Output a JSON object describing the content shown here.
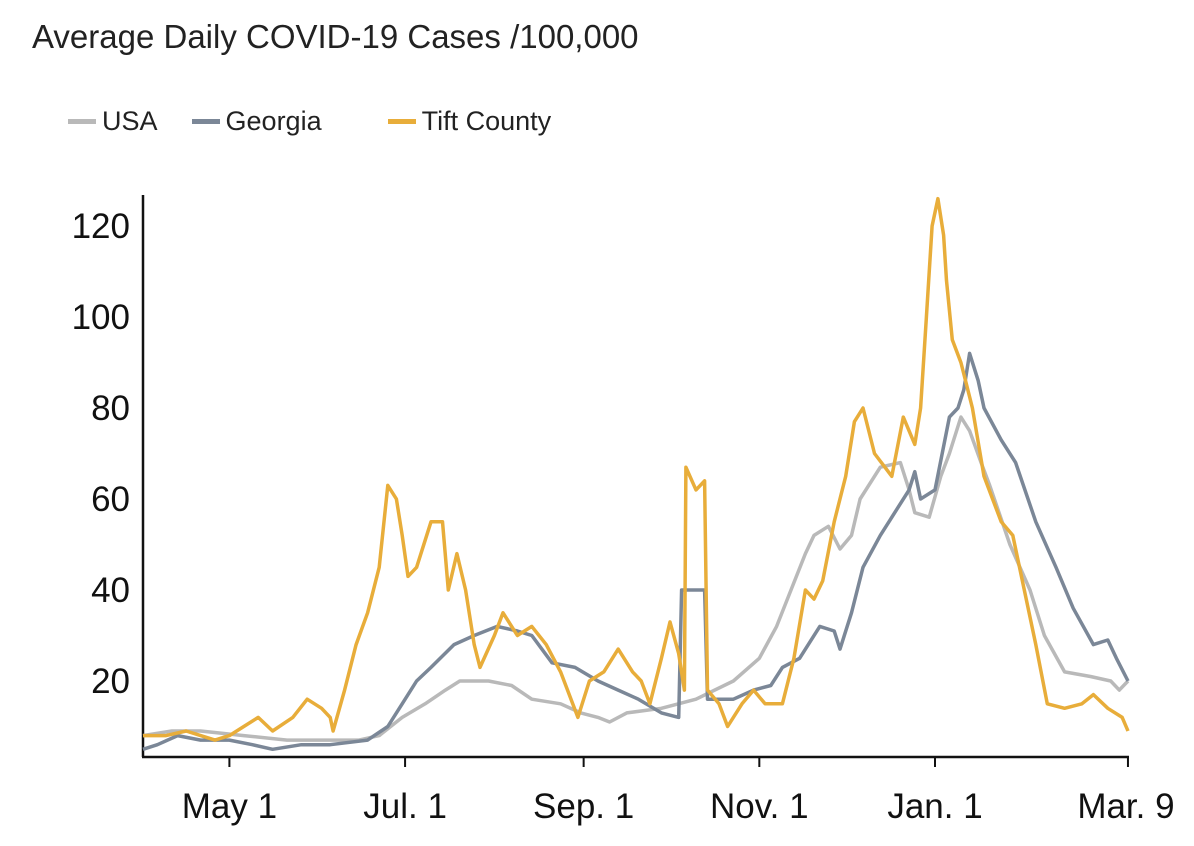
{
  "chart_data": {
    "type": "line",
    "title": "Average Daily COVID-19 Cases /100,000",
    "xlabel": "",
    "ylabel": "",
    "x_unit": "days since Apr. 1 2020",
    "xlim": [
      0,
      342
    ],
    "ylim": [
      3,
      127
    ],
    "grid": false,
    "legend_position": "top-left",
    "x_ticks": [
      {
        "label": "May 1",
        "day": 30
      },
      {
        "label": "Jul. 1",
        "day": 91
      },
      {
        "label": "Sep. 1",
        "day": 153
      },
      {
        "label": "Nov. 1",
        "day": 214
      },
      {
        "label": "Jan. 1",
        "day": 275
      },
      {
        "label": "Mar. 9",
        "day": 342
      }
    ],
    "y_ticks": [
      20,
      40,
      60,
      80,
      100,
      120
    ],
    "series": [
      {
        "name": "USA",
        "color": "#b9b9b9",
        "points": [
          [
            0,
            8
          ],
          [
            10,
            9
          ],
          [
            20,
            9
          ],
          [
            35,
            8
          ],
          [
            50,
            7
          ],
          [
            65,
            7
          ],
          [
            75,
            7
          ],
          [
            82,
            8
          ],
          [
            90,
            12
          ],
          [
            98,
            15
          ],
          [
            105,
            18
          ],
          [
            110,
            20
          ],
          [
            120,
            20
          ],
          [
            128,
            19
          ],
          [
            135,
            16
          ],
          [
            145,
            15
          ],
          [
            152,
            13
          ],
          [
            158,
            12
          ],
          [
            162,
            11
          ],
          [
            168,
            13
          ],
          [
            180,
            14
          ],
          [
            192,
            16
          ],
          [
            205,
            20
          ],
          [
            214,
            25
          ],
          [
            220,
            32
          ],
          [
            225,
            40
          ],
          [
            230,
            48
          ],
          [
            233,
            52
          ],
          [
            238,
            54
          ],
          [
            242,
            49
          ],
          [
            246,
            52
          ],
          [
            249,
            60
          ],
          [
            256,
            67
          ],
          [
            263,
            68
          ],
          [
            266,
            62
          ],
          [
            268,
            57
          ],
          [
            273,
            56
          ],
          [
            277,
            65
          ],
          [
            280,
            70
          ],
          [
            284,
            78
          ],
          [
            287,
            75
          ],
          [
            291,
            68
          ],
          [
            294,
            63
          ],
          [
            301,
            50
          ],
          [
            308,
            40
          ],
          [
            313,
            30
          ],
          [
            320,
            22
          ],
          [
            329,
            21
          ],
          [
            336,
            20
          ],
          [
            339,
            18
          ],
          [
            342,
            20
          ]
        ]
      },
      {
        "name": "Georgia",
        "color": "#7b8797",
        "points": [
          [
            0,
            5
          ],
          [
            5,
            6
          ],
          [
            12,
            8
          ],
          [
            20,
            7
          ],
          [
            30,
            7
          ],
          [
            38,
            6
          ],
          [
            45,
            5
          ],
          [
            55,
            6
          ],
          [
            65,
            6
          ],
          [
            78,
            7
          ],
          [
            85,
            10
          ],
          [
            90,
            15
          ],
          [
            95,
            20
          ],
          [
            100,
            23
          ],
          [
            108,
            28
          ],
          [
            115,
            30
          ],
          [
            123,
            32
          ],
          [
            130,
            31
          ],
          [
            135,
            30
          ],
          [
            142,
            24
          ],
          [
            150,
            23
          ],
          [
            158,
            20
          ],
          [
            165,
            18
          ],
          [
            172,
            16
          ],
          [
            180,
            13
          ],
          [
            186,
            12
          ],
          [
            187,
            40
          ],
          [
            195,
            40
          ],
          [
            196,
            16
          ],
          [
            205,
            16
          ],
          [
            212,
            18
          ],
          [
            218,
            19
          ],
          [
            222,
            23
          ],
          [
            228,
            25
          ],
          [
            235,
            32
          ],
          [
            240,
            31
          ],
          [
            242,
            27
          ],
          [
            246,
            35
          ],
          [
            250,
            45
          ],
          [
            256,
            52
          ],
          [
            262,
            58
          ],
          [
            266,
            62
          ],
          [
            268,
            66
          ],
          [
            270,
            60
          ],
          [
            275,
            62
          ],
          [
            280,
            78
          ],
          [
            283,
            80
          ],
          [
            285,
            84
          ],
          [
            287,
            92
          ],
          [
            290,
            86
          ],
          [
            292,
            80
          ],
          [
            298,
            73
          ],
          [
            303,
            68
          ],
          [
            310,
            55
          ],
          [
            317,
            45
          ],
          [
            323,
            36
          ],
          [
            330,
            28
          ],
          [
            335,
            29
          ],
          [
            338,
            25
          ],
          [
            342,
            20
          ]
        ]
      },
      {
        "name": "Tift County",
        "color": "#e8ad3a",
        "points": [
          [
            0,
            8
          ],
          [
            8,
            8
          ],
          [
            15,
            9
          ],
          [
            20,
            8
          ],
          [
            25,
            7
          ],
          [
            30,
            8
          ],
          [
            35,
            10
          ],
          [
            40,
            12
          ],
          [
            45,
            9
          ],
          [
            52,
            12
          ],
          [
            57,
            16
          ],
          [
            62,
            14
          ],
          [
            65,
            12
          ],
          [
            66,
            9
          ],
          [
            70,
            18
          ],
          [
            74,
            28
          ],
          [
            78,
            35
          ],
          [
            82,
            45
          ],
          [
            85,
            63
          ],
          [
            88,
            60
          ],
          [
            90,
            52
          ],
          [
            92,
            43
          ],
          [
            95,
            45
          ],
          [
            100,
            55
          ],
          [
            104,
            55
          ],
          [
            106,
            40
          ],
          [
            109,
            48
          ],
          [
            112,
            40
          ],
          [
            115,
            28
          ],
          [
            117,
            23
          ],
          [
            122,
            30
          ],
          [
            125,
            35
          ],
          [
            130,
            30
          ],
          [
            135,
            32
          ],
          [
            140,
            28
          ],
          [
            145,
            22
          ],
          [
            151,
            12
          ],
          [
            155,
            20
          ],
          [
            160,
            22
          ],
          [
            165,
            27
          ],
          [
            170,
            22
          ],
          [
            173,
            20
          ],
          [
            176,
            15
          ],
          [
            180,
            25
          ],
          [
            183,
            33
          ],
          [
            186,
            26
          ],
          [
            188,
            18
          ],
          [
            188.5,
            67
          ],
          [
            192,
            62
          ],
          [
            195,
            64
          ],
          [
            196,
            18
          ],
          [
            200,
            15
          ],
          [
            203,
            10
          ],
          [
            208,
            15
          ],
          [
            212,
            18
          ],
          [
            216,
            15
          ],
          [
            222,
            15
          ],
          [
            226,
            25
          ],
          [
            230,
            40
          ],
          [
            233,
            38
          ],
          [
            236,
            42
          ],
          [
            240,
            55
          ],
          [
            244,
            65
          ],
          [
            247,
            77
          ],
          [
            250,
            80
          ],
          [
            254,
            70
          ],
          [
            260,
            65
          ],
          [
            264,
            78
          ],
          [
            268,
            72
          ],
          [
            270,
            80
          ],
          [
            272,
            100
          ],
          [
            274,
            120
          ],
          [
            276,
            126
          ],
          [
            278,
            118
          ],
          [
            279,
            108
          ],
          [
            281,
            95
          ],
          [
            284,
            90
          ],
          [
            286,
            85
          ],
          [
            288,
            80
          ],
          [
            292,
            65
          ],
          [
            298,
            55
          ],
          [
            302,
            52
          ],
          [
            306,
            40
          ],
          [
            310,
            28
          ],
          [
            314,
            15
          ],
          [
            320,
            14
          ],
          [
            326,
            15
          ],
          [
            330,
            17
          ],
          [
            335,
            14
          ],
          [
            340,
            12
          ],
          [
            342,
            9
          ]
        ]
      }
    ]
  }
}
